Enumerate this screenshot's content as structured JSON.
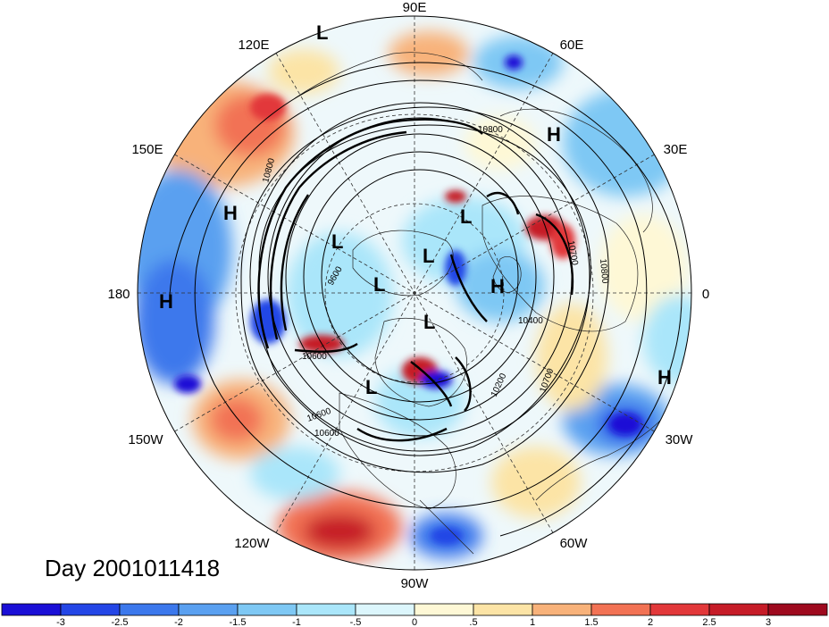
{
  "map": {
    "projection": "polar-stereographic-north",
    "day_label": "Day 2001011418",
    "longitude_labels": [
      "90E",
      "60E",
      "30E",
      "0",
      "30W",
      "60W",
      "90W",
      "120W",
      "150W",
      "180",
      "150E",
      "120E"
    ],
    "contour_labels": [
      "10800",
      "10700",
      "10800",
      "10400",
      "10200",
      "10700",
      "10600",
      "10600",
      "10800",
      "9600",
      "10600"
    ],
    "pressure_centers": [
      {
        "type": "L",
        "region": "East Siberia"
      },
      {
        "type": "H",
        "region": "Scandinavia"
      },
      {
        "type": "H",
        "region": "North Pacific"
      },
      {
        "type": "L",
        "region": "Kara Sea"
      },
      {
        "type": "L",
        "region": "East Siberian Sea"
      },
      {
        "type": "L",
        "region": "Arctic Ocean"
      },
      {
        "type": "L",
        "region": "Beaufort Sea"
      },
      {
        "type": "H",
        "region": "Greenland"
      },
      {
        "type": "L",
        "region": "Canadian Archipelago"
      },
      {
        "type": "H",
        "region": "Central Pacific"
      },
      {
        "type": "L",
        "region": "Hudson Bay"
      },
      {
        "type": "H",
        "region": "East Atlantic"
      }
    ]
  },
  "colorbar": {
    "tick_labels": [
      "-3",
      "-2.5",
      "-2",
      "-1.5",
      "-1",
      "-.5",
      "0",
      ".5",
      "1",
      "1.5",
      "2",
      "2.5",
      "3"
    ],
    "colors": [
      "#1a0fd6",
      "#2446e6",
      "#3c78ec",
      "#5aa0f0",
      "#7ec8f4",
      "#aae6fa",
      "#dcf6fc",
      "#fef8d6",
      "#fce4a6",
      "#f8b27a",
      "#f27254",
      "#e2383a",
      "#c61c28",
      "#9e0a1e"
    ]
  }
}
